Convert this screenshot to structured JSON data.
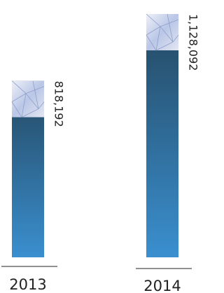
{
  "chart_data": {
    "type": "bar",
    "categories": [
      "2013",
      "2014"
    ],
    "values": [
      818192,
      1128092
    ],
    "value_labels": [
      "818,192",
      "1,128,092"
    ],
    "color": "#3a8fcf"
  }
}
